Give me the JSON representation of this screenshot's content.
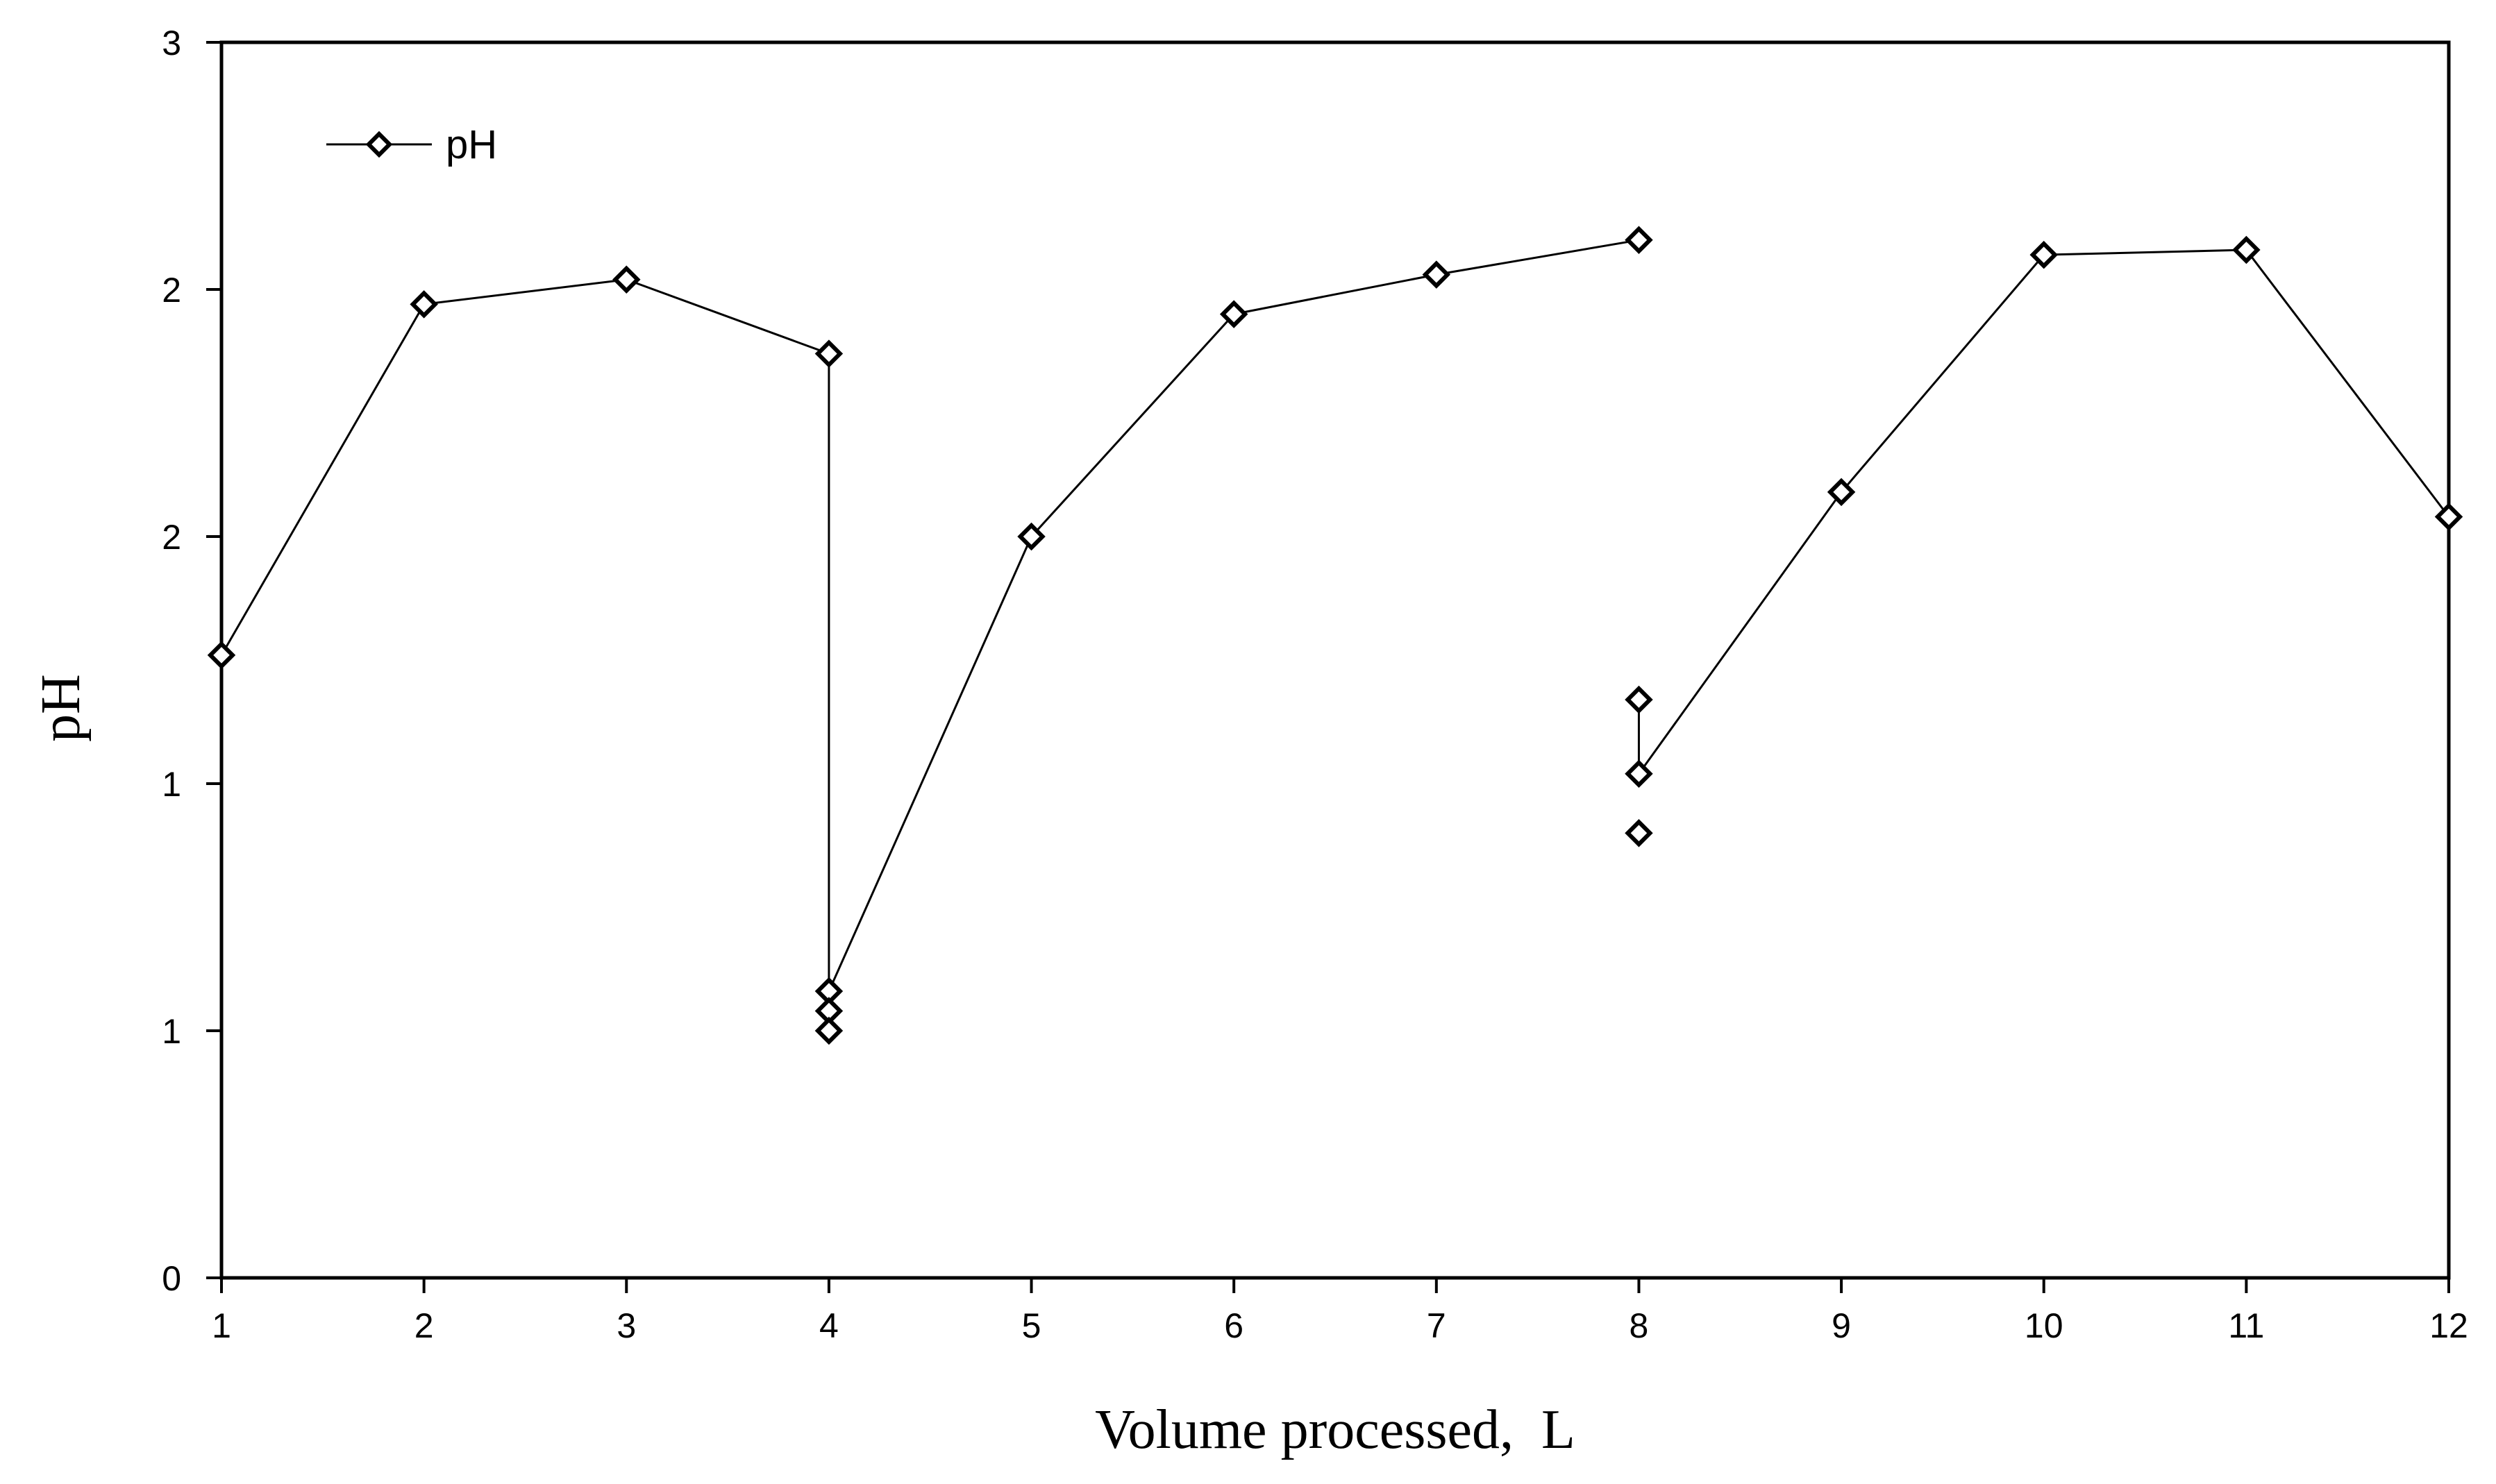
{
  "chart_data": {
    "type": "line",
    "title": "",
    "xlabel": "Volume processed,  L",
    "ylabel": "pH",
    "xlim": [
      1,
      12
    ],
    "ylim": [
      0,
      2.5
    ],
    "x_ticks": [
      1,
      2,
      3,
      4,
      5,
      6,
      7,
      8,
      9,
      10,
      11,
      12
    ],
    "y_ticks": [
      {
        "value": 0,
        "label": "0"
      },
      {
        "value": 0.5,
        "label": "1"
      },
      {
        "value": 1.0,
        "label": "1"
      },
      {
        "value": 1.5,
        "label": "2"
      },
      {
        "value": 2.0,
        "label": "2"
      },
      {
        "value": 2.5,
        "label": "3"
      }
    ],
    "grid": false,
    "legend": {
      "position": "top-left",
      "entries": [
        "pH"
      ]
    },
    "series": [
      {
        "name": "pH",
        "marker": "diamond",
        "color": "#000000",
        "points": [
          {
            "x": 1,
            "y": 1.26
          },
          {
            "x": 2,
            "y": 1.97
          },
          {
            "x": 3,
            "y": 2.02
          },
          {
            "x": 4,
            "y": 1.87
          },
          {
            "x": 4,
            "y": 0.58
          },
          {
            "x": 4,
            "y": 0.54
          },
          {
            "x": 4,
            "y": 0.5
          },
          {
            "x": 5,
            "y": 1.5
          },
          {
            "x": 6,
            "y": 1.95
          },
          {
            "x": 7,
            "y": 2.03
          },
          {
            "x": 8,
            "y": 2.1
          },
          {
            "x": 8,
            "y": 1.17
          },
          {
            "x": 8,
            "y": 1.02
          },
          {
            "x": 8,
            "y": 0.9
          },
          {
            "x": 9,
            "y": 1.59
          },
          {
            "x": 10,
            "y": 2.07
          },
          {
            "x": 11,
            "y": 2.08
          },
          {
            "x": 12,
            "y": 1.54
          }
        ],
        "segments": [
          [
            0,
            1
          ],
          [
            1,
            2
          ],
          [
            2,
            3
          ],
          [
            3,
            4
          ],
          [
            4,
            7
          ],
          [
            7,
            8
          ],
          [
            8,
            9
          ],
          [
            9,
            10
          ],
          [
            11,
            12
          ],
          [
            12,
            14
          ],
          [
            14,
            15
          ],
          [
            15,
            16
          ],
          [
            16,
            17
          ]
        ]
      }
    ]
  }
}
